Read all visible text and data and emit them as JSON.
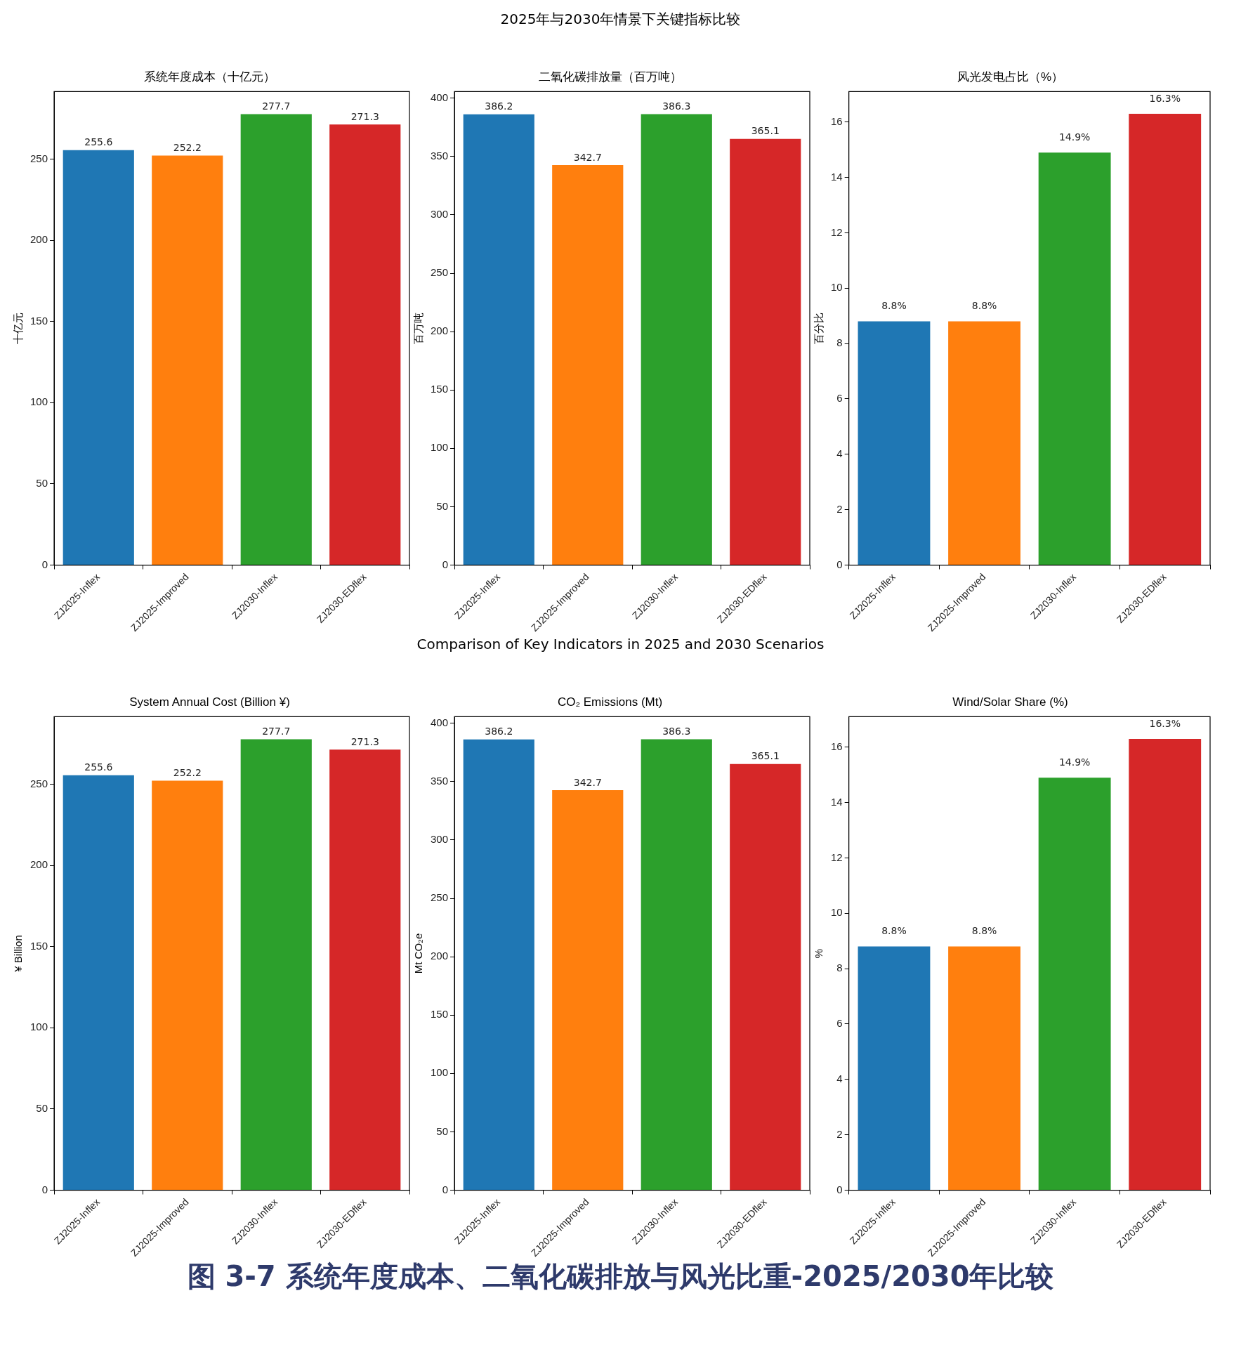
{
  "chart_data": [
    {
      "type": "bar",
      "title": "系统年度成本（十亿元）",
      "ylabel": "十亿元",
      "annotations": [
        "2025年与2030年情景下关键指标比较"
      ],
      "categories": [
        "ZJ2025-Inflex",
        "ZJ2025-Improved",
        "ZJ2030-Inflex",
        "ZJ2030-EDflex"
      ],
      "values": [
        255.6,
        252.2,
        277.7,
        271.3
      ],
      "colors": [
        "#1f77b4",
        "#ff7f0e",
        "#2ca02c",
        "#d62728"
      ],
      "ylim": [
        0,
        291.6
      ],
      "yticks": [
        0,
        50,
        100,
        150,
        200,
        250
      ],
      "data_labels": true,
      "legend": false,
      "grid": false
    },
    {
      "type": "bar",
      "title": "二氧化碳排放量（百万吨）",
      "ylabel": "百万吨",
      "categories": [
        "ZJ2025-Inflex",
        "ZJ2025-Improved",
        "ZJ2030-Inflex",
        "ZJ2030-EDflex"
      ],
      "values": [
        386.2,
        342.7,
        386.3,
        365.1
      ],
      "colors": [
        "#1f77b4",
        "#ff7f0e",
        "#2ca02c",
        "#d62728"
      ],
      "ylim": [
        0,
        405.6
      ],
      "yticks": [
        0,
        50,
        100,
        150,
        200,
        250,
        300,
        350,
        400
      ],
      "data_labels": true,
      "legend": false,
      "grid": false
    },
    {
      "type": "bar",
      "title": "风光发电占比（%）",
      "ylabel": "百分比",
      "categories": [
        "ZJ2025-Inflex",
        "ZJ2025-Improved",
        "ZJ2030-Inflex",
        "ZJ2030-EDflex"
      ],
      "values": [
        8.8,
        8.8,
        14.9,
        16.3
      ],
      "value_labels": [
        "8.8%",
        "8.8%",
        "14.9%",
        "16.3%"
      ],
      "colors": [
        "#1f77b4",
        "#ff7f0e",
        "#2ca02c",
        "#d62728"
      ],
      "ylim": [
        0,
        17.1
      ],
      "yticks": [
        0,
        2,
        4,
        6,
        8,
        10,
        12,
        14,
        16
      ],
      "legend": false,
      "grid": false
    },
    {
      "type": "bar",
      "title": "System Annual Cost (Billion ¥)",
      "ylabel": "¥ Billion",
      "annotations": [
        "Comparison of Key Indicators in 2025 and 2030 Scenarios"
      ],
      "categories": [
        "ZJ2025-Inflex",
        "ZJ2025-Improved",
        "ZJ2030-Inflex",
        "ZJ2030-EDflex"
      ],
      "values": [
        255.6,
        252.2,
        277.7,
        271.3
      ],
      "colors": [
        "#1f77b4",
        "#ff7f0e",
        "#2ca02c",
        "#d62728"
      ],
      "ylim": [
        0,
        291.6
      ],
      "yticks": [
        0,
        50,
        100,
        150,
        200,
        250
      ],
      "data_labels": true,
      "legend": false,
      "grid": false
    },
    {
      "type": "bar",
      "title": "CO₂ Emissions (Mt)",
      "ylabel": "Mt CO₂e",
      "categories": [
        "ZJ2025-Inflex",
        "ZJ2025-Improved",
        "ZJ2030-Inflex",
        "ZJ2030-EDflex"
      ],
      "values": [
        386.2,
        342.7,
        386.3,
        365.1
      ],
      "colors": [
        "#1f77b4",
        "#ff7f0e",
        "#2ca02c",
        "#d62728"
      ],
      "ylim": [
        0,
        405.6
      ],
      "yticks": [
        0,
        50,
        100,
        150,
        200,
        250,
        300,
        350,
        400
      ],
      "data_labels": true,
      "legend": false,
      "grid": false
    },
    {
      "type": "bar",
      "title": "Wind/Solar Share (%)",
      "ylabel": "%",
      "annotations": [
        "图 3-7 系统年度成本、二氧化碳排放与风光比重-2025/2030年比较"
      ],
      "categories": [
        "ZJ2025-Inflex",
        "ZJ2025-Improved",
        "ZJ2030-Inflex",
        "ZJ2030-EDflex"
      ],
      "values": [
        8.8,
        8.8,
        14.9,
        16.3
      ],
      "value_labels": [
        "8.8%",
        "8.8%",
        "14.9%",
        "16.3%"
      ],
      "colors": [
        "#1f77b4",
        "#ff7f0e",
        "#2ca02c",
        "#d62728"
      ],
      "ylim": [
        0,
        17.1
      ],
      "yticks": [
        0,
        2,
        4,
        6,
        8,
        10,
        12,
        14,
        16
      ],
      "legend": false,
      "grid": false
    }
  ]
}
